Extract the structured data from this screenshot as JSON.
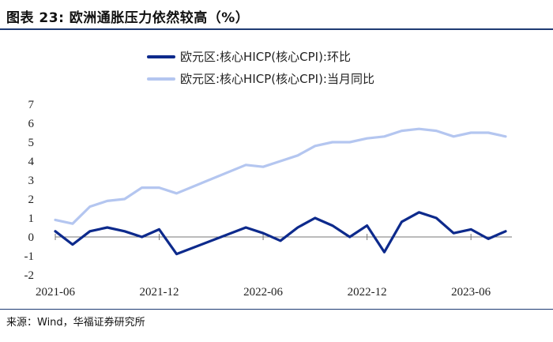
{
  "title": "图表 23:  欧洲通胀压力依然较高（%）",
  "source": "来源：Wind，华福证券研究所",
  "chart_data": {
    "type": "line",
    "x": [
      "2021-06",
      "2021-07",
      "2021-08",
      "2021-09",
      "2021-10",
      "2021-11",
      "2021-12",
      "2022-01",
      "2022-02",
      "2022-03",
      "2022-04",
      "2022-05",
      "2022-06",
      "2022-07",
      "2022-08",
      "2022-09",
      "2022-10",
      "2022-11",
      "2022-12",
      "2023-01",
      "2023-02",
      "2023-03",
      "2023-04",
      "2023-05",
      "2023-06",
      "2023-07",
      "2023-08"
    ],
    "xticks": [
      "2021-06",
      "2021-12",
      "2022-06",
      "2022-12",
      "2023-06"
    ],
    "ylim": [
      -2,
      7
    ],
    "yticks": [
      7,
      6,
      5,
      4,
      3,
      2,
      1,
      0,
      -1,
      -2
    ],
    "legend_position": "top-center",
    "grid": false,
    "series": [
      {
        "name": "欧元区:核心HICP(核心CPI):环比",
        "color": "#0d2a8c",
        "values": [
          0.3,
          -0.4,
          0.3,
          0.5,
          0.3,
          0.0,
          0.4,
          -0.9,
          null,
          null,
          null,
          0.5,
          0.2,
          -0.2,
          0.5,
          1.0,
          0.6,
          0.0,
          0.6,
          -0.8,
          0.8,
          1.3,
          1.0,
          0.2,
          0.4,
          -0.1,
          0.3
        ]
      },
      {
        "name": "欧元区:核心HICP(核心CPI):当月同比",
        "color": "#b4c6f0",
        "values": [
          0.9,
          0.7,
          1.6,
          1.9,
          2.0,
          2.6,
          2.6,
          2.3,
          null,
          null,
          null,
          3.8,
          3.7,
          4.0,
          4.3,
          4.8,
          5.0,
          5.0,
          5.2,
          5.3,
          5.6,
          5.7,
          5.6,
          5.3,
          5.5,
          5.5,
          5.3
        ]
      }
    ]
  }
}
